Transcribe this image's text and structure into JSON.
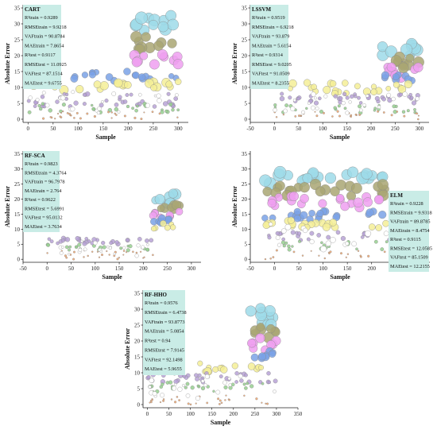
{
  "colors": {
    "stats_box": "#c9ece6",
    "cyan": "#9edbe9",
    "olive": "#a9a673",
    "magenta": "#ef9ff0",
    "blue": "#7aa2e6",
    "yellow": "#f4ef96",
    "purple": "#b7a2d6",
    "green": "#96d08f",
    "orange": "#f3a46a",
    "hollow": "#ffffff"
  },
  "chart_data": [
    {
      "id": "cart",
      "type": "scatter",
      "title": "CART",
      "xlabel": "Sample",
      "ylabel": "Absolute Error",
      "xlim": [
        -10,
        320
      ],
      "ylim": [
        -1,
        36
      ],
      "xticks": [
        0,
        50,
        100,
        150,
        200,
        250,
        300
      ],
      "yticks": [
        0,
        5,
        10,
        15,
        20,
        25,
        30,
        35
      ],
      "grid": false,
      "stats_box_placement": "top-left",
      "stats": [
        "R²train = 0.9289",
        "RMSEtrain = 9.9218",
        "VAFtrain = 90.8784",
        "MAEtrain = 7.8654",
        "R²test = 0.9117",
        "RMSEtest = 11.0925",
        "VAFtest = 87.1514",
        "MAEtest = 9.6755"
      ]
    },
    {
      "id": "lssvm",
      "type": "scatter",
      "title": "LSSVM",
      "xlabel": "Sample",
      "ylabel": "Absolute Error",
      "xlim": [
        -50,
        320
      ],
      "ylim": [
        -1,
        36
      ],
      "xticks": [
        -50,
        0,
        50,
        100,
        150,
        200,
        250,
        300
      ],
      "yticks": [
        0,
        5,
        10,
        15,
        20,
        25,
        30,
        35
      ],
      "grid": false,
      "stats_box_placement": "top-left",
      "stats": [
        "R²train = 0.9519",
        "RMSEtrain = 6.9218",
        "VAFtrain = 93.879",
        "MAEtrain = 5.6154",
        "R²test = 0.9314",
        "RMSEtest = 9.0205",
        "VAFtest = 91.0509",
        "MAEtest = 8.2355"
      ]
    },
    {
      "id": "rf-sca",
      "type": "scatter",
      "title": "RF-SCA",
      "xlabel": "Sample",
      "ylabel": "Absolute Error",
      "xlim": [
        -50,
        320
      ],
      "ylim": [
        -1,
        36
      ],
      "xticks": [
        -50,
        0,
        50,
        100,
        150,
        200,
        250,
        300
      ],
      "yticks": [
        0,
        5,
        10,
        15,
        20,
        25,
        30,
        35
      ],
      "grid": false,
      "stats_box_placement": "top-left",
      "stats": [
        "R²train = 0.9823",
        "RMSEtrain = 4.3764",
        "VAFtrain = 96.7978",
        "MAEtrain = 2.764",
        "R²test = 0.9622",
        "RMSEtest = 5.6991",
        "VAFtest = 95.0132",
        "MAEtest = 3.7634"
      ]
    },
    {
      "id": "elm",
      "type": "scatter",
      "title": "ELM",
      "xlabel": "Sample",
      "ylabel": "Absolute Error",
      "xlim": [
        -50,
        320
      ],
      "ylim": [
        -1,
        36
      ],
      "xticks": [
        -50,
        0,
        50,
        100,
        150,
        200,
        250,
        300
      ],
      "yticks": [
        0,
        5,
        10,
        15,
        20,
        25,
        30,
        35
      ],
      "grid": false,
      "stats_box_placement": "top-right",
      "stats": [
        "R²train = 0.9228",
        "RMSEtrain = 9.9318",
        "VAFtrain = 89.8785",
        "MAEtrain = 8.4754",
        "R²test = 0.9115",
        "RMSEtest = 12.0585",
        "VAFtest = 85.1509",
        "MAEtest = 12.2155"
      ]
    },
    {
      "id": "rf-hho",
      "type": "scatter",
      "title": "RF-HHO",
      "xlabel": "Sample",
      "ylabel": "Absolute Error",
      "xlim": [
        -10,
        350
      ],
      "ylim": [
        -1,
        36
      ],
      "xticks": [
        0,
        50,
        100,
        150,
        200,
        250,
        300,
        350
      ],
      "yticks": [
        0,
        5,
        10,
        15,
        20,
        25,
        30,
        35
      ],
      "grid": false,
      "stats_box_placement": "top-left",
      "stats": [
        "R²train = 0.9576",
        "RMSEtrain = 6.4738",
        "VAFtrain = 93.8773",
        "MAEtrain = 5.0854",
        "R²test = 0.94",
        "RMSEtest = 7.9145",
        "VAFtest = 92.1498",
        "MAEtest = 5.9655"
      ]
    }
  ]
}
